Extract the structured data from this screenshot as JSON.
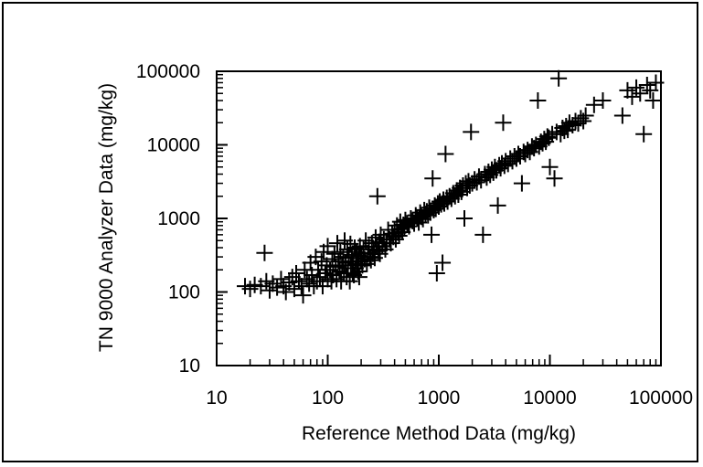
{
  "chart_data": {
    "type": "scatter",
    "title": "",
    "xlabel": "Reference Method Data (mg/kg)",
    "ylabel": "TN 9000 Analyzer Data (mg/kg)",
    "x_scale": "log",
    "y_scale": "log",
    "xlim": [
      10,
      100000
    ],
    "ylim": [
      10,
      100000
    ],
    "x_ticks": [
      "10",
      "100",
      "1000",
      "10000",
      "100000"
    ],
    "y_ticks": [
      "10",
      "100",
      "1000",
      "10000",
      "100000"
    ],
    "grid": false,
    "legend": "none",
    "marker": "plus",
    "marker_color": "#000000",
    "series": [
      {
        "points": [
          [
            18,
            120
          ],
          [
            20,
            110
          ],
          [
            22,
            125
          ],
          [
            25,
            120
          ],
          [
            27,
            340
          ],
          [
            28,
            140
          ],
          [
            30,
            105
          ],
          [
            32,
            130
          ],
          [
            35,
            115
          ],
          [
            38,
            150
          ],
          [
            40,
            120
          ],
          [
            42,
            100
          ],
          [
            45,
            135
          ],
          [
            48,
            160
          ],
          [
            50,
            110
          ],
          [
            52,
            180
          ],
          [
            55,
            140
          ],
          [
            58,
            120
          ],
          [
            60,
            90
          ],
          [
            62,
            200
          ],
          [
            65,
            150
          ],
          [
            68,
            130
          ],
          [
            70,
            250
          ],
          [
            72,
            170
          ],
          [
            75,
            120
          ],
          [
            78,
            300
          ],
          [
            80,
            140
          ],
          [
            82,
            200
          ],
          [
            85,
            160
          ],
          [
            88,
            260
          ],
          [
            90,
            120
          ],
          [
            92,
            350
          ],
          [
            95,
            180
          ],
          [
            98,
            230
          ],
          [
            100,
            150
          ],
          [
            100,
            420
          ],
          [
            105,
            200
          ],
          [
            108,
            140
          ],
          [
            110,
            280
          ],
          [
            112,
            170
          ],
          [
            115,
            330
          ],
          [
            118,
            220
          ],
          [
            120,
            150
          ],
          [
            122,
            460
          ],
          [
            125,
            260
          ],
          [
            128,
            190
          ],
          [
            130,
            350
          ],
          [
            132,
            140
          ],
          [
            135,
            230
          ],
          [
            138,
            300
          ],
          [
            140,
            180
          ],
          [
            142,
            500
          ],
          [
            145,
            250
          ],
          [
            148,
            160
          ],
          [
            150,
            380
          ],
          [
            152,
            210
          ],
          [
            155,
            290
          ],
          [
            158,
            140
          ],
          [
            160,
            450
          ],
          [
            162,
            230
          ],
          [
            165,
            320
          ],
          [
            168,
            180
          ],
          [
            170,
            260
          ],
          [
            172,
            170
          ],
          [
            175,
            400
          ],
          [
            178,
            210
          ],
          [
            180,
            290
          ],
          [
            182,
            350
          ],
          [
            185,
            240
          ],
          [
            188,
            190
          ],
          [
            190,
            310
          ],
          [
            192,
            160
          ],
          [
            195,
            420
          ],
          [
            198,
            260
          ],
          [
            200,
            330
          ],
          [
            205,
            230
          ],
          [
            210,
            380
          ],
          [
            215,
            280
          ],
          [
            220,
            500
          ],
          [
            225,
            240
          ],
          [
            230,
            340
          ],
          [
            235,
            410
          ],
          [
            240,
            300
          ],
          [
            245,
            270
          ],
          [
            250,
            460
          ],
          [
            255,
            330
          ],
          [
            260,
            380
          ],
          [
            265,
            290
          ],
          [
            270,
            550
          ],
          [
            275,
            410
          ],
          [
            280,
            2000
          ],
          [
            285,
            360
          ],
          [
            290,
            480
          ],
          [
            295,
            330
          ],
          [
            300,
            600
          ],
          [
            310,
            420
          ],
          [
            320,
            520
          ],
          [
            330,
            380
          ],
          [
            340,
            460
          ],
          [
            350,
            700
          ],
          [
            360,
            520
          ],
          [
            370,
            460
          ],
          [
            380,
            620
          ],
          [
            390,
            560
          ],
          [
            400,
            700
          ],
          [
            410,
            520
          ],
          [
            420,
            800
          ],
          [
            430,
            640
          ],
          [
            440,
            580
          ],
          [
            450,
            900
          ],
          [
            460,
            720
          ],
          [
            470,
            650
          ],
          [
            480,
            820
          ],
          [
            490,
            760
          ],
          [
            500,
            950
          ],
          [
            520,
            860
          ],
          [
            540,
            780
          ],
          [
            560,
            1000
          ],
          [
            580,
            920
          ],
          [
            600,
            850
          ],
          [
            620,
            1100
          ],
          [
            640,
            1000
          ],
          [
            660,
            880
          ],
          [
            680,
            1200
          ],
          [
            700,
            1050
          ],
          [
            720,
            980
          ],
          [
            740,
            1300
          ],
          [
            760,
            1150
          ],
          [
            780,
            1250
          ],
          [
            800,
            1100
          ],
          [
            820,
            1400
          ],
          [
            840,
            1200
          ],
          [
            860,
            600
          ],
          [
            880,
            3500
          ],
          [
            900,
            1300
          ],
          [
            920,
            1500
          ],
          [
            940,
            1350
          ],
          [
            960,
            180
          ],
          [
            980,
            1600
          ],
          [
            1000,
            1450
          ],
          [
            1020,
            1700
          ],
          [
            1050,
            1550
          ],
          [
            1080,
            250
          ],
          [
            1100,
            1800
          ],
          [
            1120,
            1600
          ],
          [
            1150,
            7500
          ],
          [
            1180,
            1900
          ],
          [
            1200,
            1700
          ],
          [
            1250,
            2000
          ],
          [
            1300,
            1850
          ],
          [
            1350,
            2200
          ],
          [
            1400,
            2000
          ],
          [
            1450,
            2400
          ],
          [
            1500,
            2100
          ],
          [
            1550,
            2600
          ],
          [
            1600,
            2300
          ],
          [
            1650,
            2800
          ],
          [
            1700,
            1000
          ],
          [
            1750,
            3000
          ],
          [
            1800,
            2600
          ],
          [
            1850,
            3200
          ],
          [
            1900,
            2800
          ],
          [
            1950,
            15000
          ],
          [
            2000,
            3000
          ],
          [
            2100,
            3400
          ],
          [
            2200,
            3100
          ],
          [
            2300,
            3700
          ],
          [
            2400,
            3300
          ],
          [
            2500,
            600
          ],
          [
            2600,
            4000
          ],
          [
            2700,
            3600
          ],
          [
            2800,
            4300
          ],
          [
            2900,
            3900
          ],
          [
            3000,
            4600
          ],
          [
            3100,
            4200
          ],
          [
            3200,
            5000
          ],
          [
            3300,
            4500
          ],
          [
            3400,
            1500
          ],
          [
            3500,
            5300
          ],
          [
            3600,
            4800
          ],
          [
            3700,
            5600
          ],
          [
            3800,
            20000
          ],
          [
            3900,
            5200
          ],
          [
            4000,
            6000
          ],
          [
            4200,
            5500
          ],
          [
            4400,
            6500
          ],
          [
            4600,
            6000
          ],
          [
            4800,
            7000
          ],
          [
            5000,
            6500
          ],
          [
            5200,
            7500
          ],
          [
            5400,
            7000
          ],
          [
            5600,
            3000
          ],
          [
            5800,
            8000
          ],
          [
            6000,
            7500
          ],
          [
            6300,
            8500
          ],
          [
            6600,
            8000
          ],
          [
            6900,
            9500
          ],
          [
            7200,
            9000
          ],
          [
            7500,
            10000
          ],
          [
            7800,
            40000
          ],
          [
            8000,
            9500
          ],
          [
            8300,
            11000
          ],
          [
            8600,
            10500
          ],
          [
            8900,
            12000
          ],
          [
            9200,
            11000
          ],
          [
            9500,
            13000
          ],
          [
            9800,
            12500
          ],
          [
            10000,
            5000
          ],
          [
            10500,
            14000
          ],
          [
            11000,
            3500
          ],
          [
            11500,
            15000
          ],
          [
            12000,
            80000
          ],
          [
            12500,
            14000
          ],
          [
            13000,
            17000
          ],
          [
            13500,
            15500
          ],
          [
            14000,
            18000
          ],
          [
            14500,
            16000
          ],
          [
            15000,
            20000
          ],
          [
            16000,
            18500
          ],
          [
            17000,
            21000
          ],
          [
            18000,
            19500
          ],
          [
            19000,
            23000
          ],
          [
            20000,
            21000
          ],
          [
            21000,
            25000
          ],
          [
            25000,
            35000
          ],
          [
            30000,
            40000
          ],
          [
            45000,
            25000
          ],
          [
            50000,
            55000
          ],
          [
            55000,
            45000
          ],
          [
            60000,
            60000
          ],
          [
            65000,
            50000
          ],
          [
            70000,
            14000
          ],
          [
            75000,
            65000
          ],
          [
            80000,
            55000
          ],
          [
            85000,
            40000
          ],
          [
            90000,
            70000
          ]
        ]
      }
    ]
  }
}
